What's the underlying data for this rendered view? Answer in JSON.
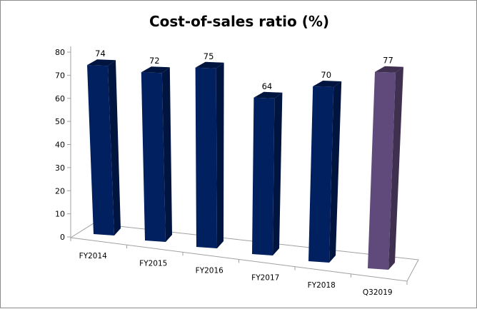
{
  "chart_data": {
    "type": "bar",
    "title": "Cost-of-sales ratio (%)",
    "xlabel": "",
    "ylabel": "",
    "ylim": [
      0,
      80
    ],
    "yticks": [
      0,
      10,
      20,
      30,
      40,
      50,
      60,
      70,
      80
    ],
    "categories": [
      "FY2014",
      "FY2015",
      "FY2016",
      "FY2017",
      "FY2018",
      "Q32019"
    ],
    "values": [
      74,
      72,
      75,
      64,
      70,
      77
    ],
    "data_labels": [
      "74",
      "72",
      "75",
      "64",
      "70",
      "77"
    ],
    "colors": [
      "#002060",
      "#002060",
      "#002060",
      "#002060",
      "#002060",
      "#604A7B"
    ],
    "side_colors": [
      "#001440",
      "#001440",
      "#001440",
      "#001440",
      "#001440",
      "#3F3050"
    ],
    "grid": false,
    "legend": "none",
    "style": "3d-column"
  }
}
